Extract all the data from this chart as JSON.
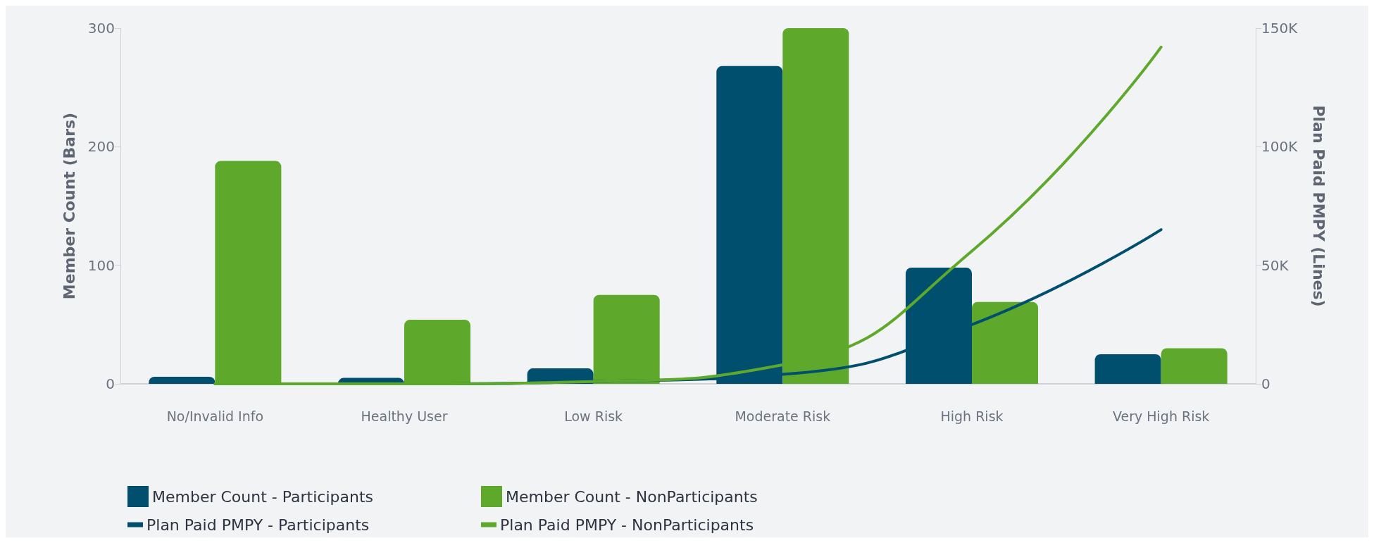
{
  "chart_data": {
    "type": "bar",
    "categories": [
      "No/Invalid Info",
      "Healthy User",
      "Low Risk",
      "Moderate Risk",
      "High Risk",
      "Very High Risk"
    ],
    "ylabel": "Member Count (Bars)",
    "y2label": "Plan Paid PMPY (Lines)",
    "ylim": [
      0,
      300
    ],
    "yticks": [
      0,
      100,
      200,
      300
    ],
    "y2lim": [
      0,
      150000
    ],
    "y2ticks": [
      0,
      {
        "value": 50000,
        "label": "50K"
      },
      {
        "value": 100000,
        "label": "100K"
      },
      {
        "value": 150000,
        "label": "150K"
      }
    ],
    "grid": false,
    "legend": "bottom left",
    "series": [
      {
        "name": "Member Count - Participants",
        "color": "#004f6e",
        "values": [
          6,
          5,
          13,
          268,
          98,
          25
        ]
      },
      {
        "name": "Member Count - NonParticipants",
        "color": "#5ea92b",
        "values": [
          188,
          54,
          75,
          300,
          69,
          30
        ]
      },
      {
        "name": "Plan Paid PMPY - Participants",
        "type": "line",
        "axis": "y2",
        "color": "#004f6e",
        "values": [
          0,
          0,
          1000,
          4000,
          25000,
          65000
        ]
      },
      {
        "name": "Plan Paid PMPY - NonParticipants",
        "type": "line",
        "axis": "y2",
        "color": "#5ea92b",
        "values": [
          0,
          0,
          1000,
          8000,
          56000,
          142000
        ]
      }
    ]
  }
}
